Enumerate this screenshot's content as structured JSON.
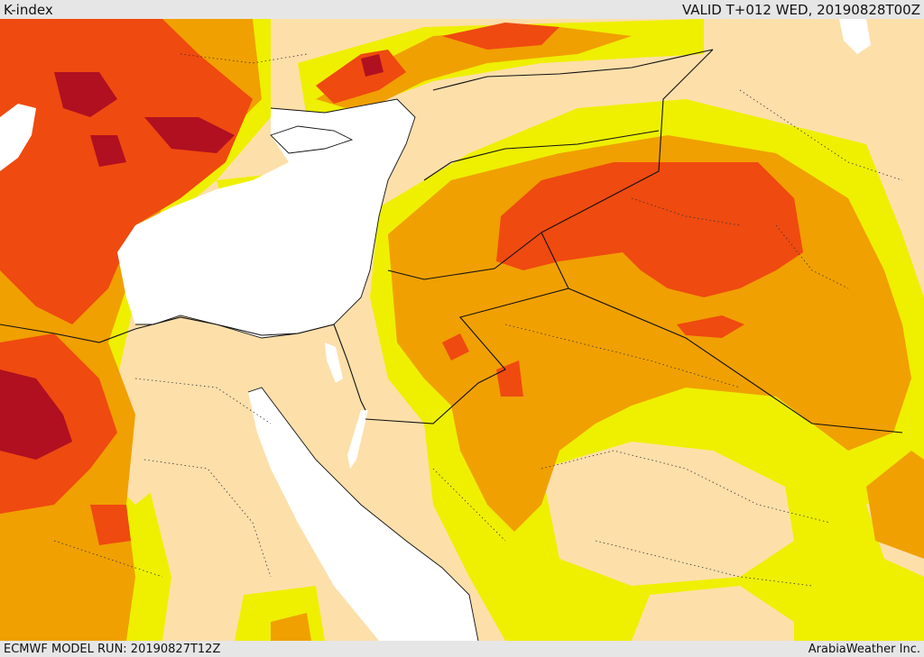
{
  "header": {
    "title": "K-index",
    "valid": "VALID T+012 WED, 20190828T00Z"
  },
  "footer": {
    "model_run": "ECMWF MODEL RUN: 20190827T12Z",
    "credit": "ArabiaWeather Inc."
  },
  "colors": {
    "sea": "#ffffff",
    "land_low": "#fddfaa",
    "k_level_1": "#eef000",
    "k_level_2": "#f0a000",
    "k_level_3": "#ef4a10",
    "k_level_4": "#b01020",
    "border": "#111111",
    "border_minor": "#333333"
  }
}
